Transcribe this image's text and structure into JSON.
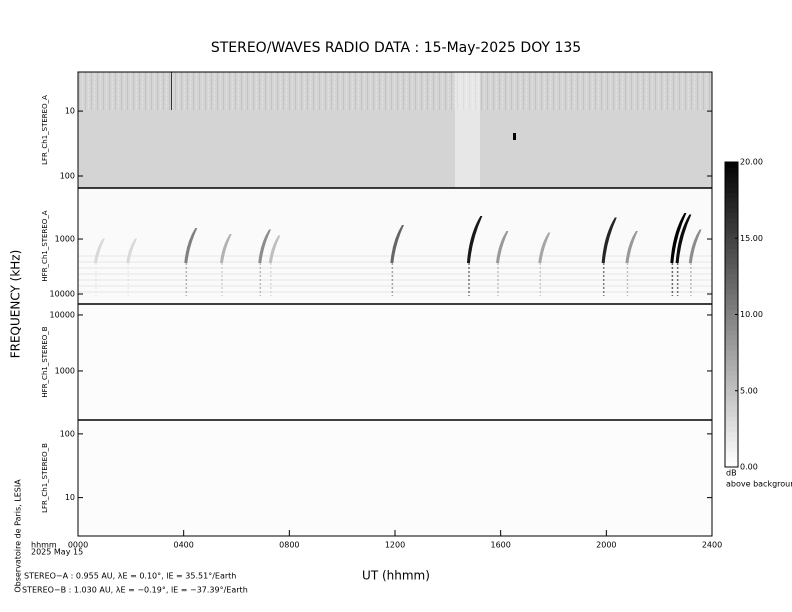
{
  "chart_data": [
    {
      "type": "spectrogram",
      "title": "STEREO/WAVES  RADIO  DATA : 15-May-2025  DOY 135",
      "ylabel": "FREQUENCY (kHz)",
      "xlabel": "UT (hhmm)",
      "date_header": "hhmm",
      "date": "2025 May 15",
      "credit": "Observatoire de Paris, LESIA",
      "ephemeris": [
        "STEREO−A : 0.955 AU, λE = 0.10°, lE = 35.51°/Earth",
        "STEREO−B : 1.030 AU, λE = −0.19°, lE = −37.39°/Earth"
      ],
      "xlim": [
        0,
        24
      ],
      "xticks": [
        {
          "value": 0,
          "label": "0000"
        },
        {
          "value": 4,
          "label": "0400"
        },
        {
          "value": 8,
          "label": "0800"
        },
        {
          "value": 12,
          "label": "1200"
        },
        {
          "value": 16,
          "label": "1600"
        },
        {
          "value": 20,
          "label": "2000"
        },
        {
          "value": 24,
          "label": "2400"
        }
      ],
      "colorbar": {
        "ylim": [
          0,
          20
        ],
        "label": "dB",
        "sublabel": "above background",
        "yticks": [
          {
            "value": 0,
            "label": "0.00"
          },
          {
            "value": 5,
            "label": "5.00"
          },
          {
            "value": 10,
            "label": "10.00"
          },
          {
            "value": 15,
            "label": "15.00"
          },
          {
            "value": 20,
            "label": "20.00"
          }
        ]
      },
      "panels": [
        {
          "name": "LFR_Ch1_STEREO_A",
          "log_scale": true,
          "ylim": [
            2.5,
            153
          ],
          "yticks": [
            10,
            100
          ],
          "background": "#d4d4d4"
        },
        {
          "name": "HFR_Ch1_STEREO_A",
          "log_scale": true,
          "ylim": [
            118,
            15200
          ],
          "yticks": [
            1000,
            10000
          ],
          "background": "#fafafa",
          "bursts": {
            "x": [
              0.68,
              1.9,
              4.1,
              5.45,
              6.9,
              7.3,
              11.9,
              14.8,
              15.9,
              17.5,
              19.9,
              20.8,
              22.5,
              22.7,
              23.2
            ],
            "values": [
              3,
              3,
              10,
              6,
              9,
              5,
              12,
              18,
              8,
              7,
              17,
              8,
              20,
              19,
              9
            ]
          }
        },
        {
          "name": "HFR_Ch1_STEREO_B",
          "log_scale": true,
          "ylim": [
            15700,
            133
          ],
          "yticks": [
            10000,
            1000
          ],
          "background": "#fcfcfc"
        },
        {
          "name": "LFR_Ch1_STEREO_B",
          "log_scale": true,
          "ylim": [
            165,
            2.5
          ],
          "yticks": [
            100,
            10
          ],
          "background": "#fcfcfc"
        }
      ]
    }
  ]
}
